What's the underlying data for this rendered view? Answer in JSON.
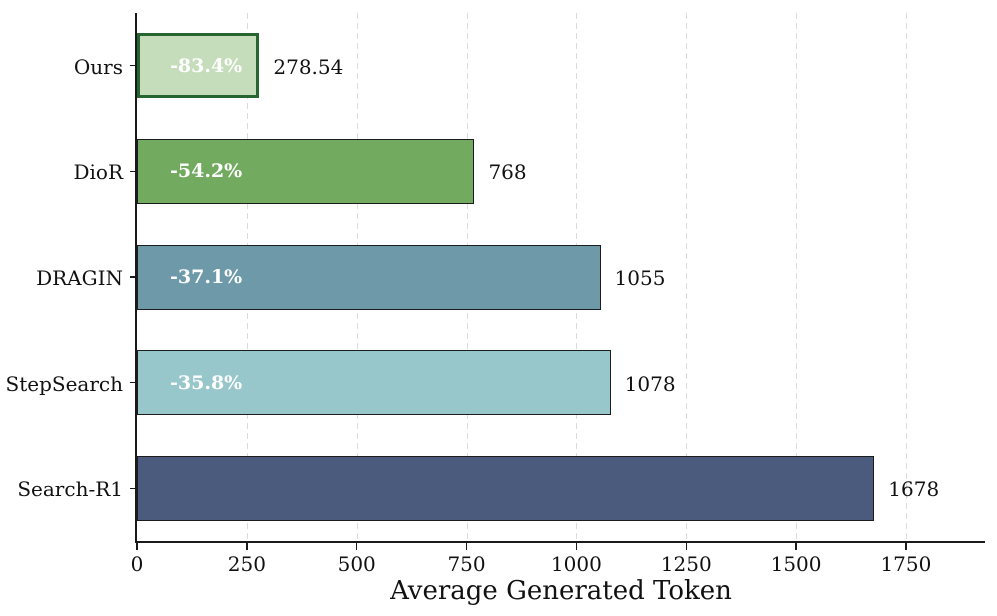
{
  "chart_data": {
    "type": "bar",
    "orientation": "horizontal",
    "title": "",
    "xlabel": "Average Generated Token",
    "ylabel": "",
    "xlim": [
      0,
      1930
    ],
    "xticks": [
      0,
      250,
      500,
      750,
      1000,
      1250,
      1500,
      1750
    ],
    "grid": "vertical-dashed",
    "legend": "none",
    "categories": [
      "Ours",
      "DioR",
      "DRAGIN",
      "StepSearch",
      "Search-R1"
    ],
    "values": [
      278.54,
      768,
      1055,
      1078,
      1678
    ],
    "value_labels": [
      "278.54",
      "768",
      "1055",
      "1078",
      "1678"
    ],
    "reduction_labels": [
      "-83.4%",
      "-54.2%",
      "-37.1%",
      "-35.8%",
      ""
    ],
    "bar_fill_colors": [
      "#c5ddbb",
      "#72aa60",
      "#6d99a8",
      "#98c7cb",
      "#4a5b7d"
    ],
    "bar_edge_colors": [
      "#26652f",
      "#1c1c1c",
      "#1c1c1c",
      "#1c1c1c",
      "#1c1c1c"
    ],
    "bar_edge_widths": [
      3.5,
      1.2,
      1.2,
      1.2,
      1.2
    ],
    "inside_label_color": "#ffffff",
    "grid_color": "#dcdcdc",
    "axis_color": "#1a1a1a",
    "text_color": "#111111"
  }
}
